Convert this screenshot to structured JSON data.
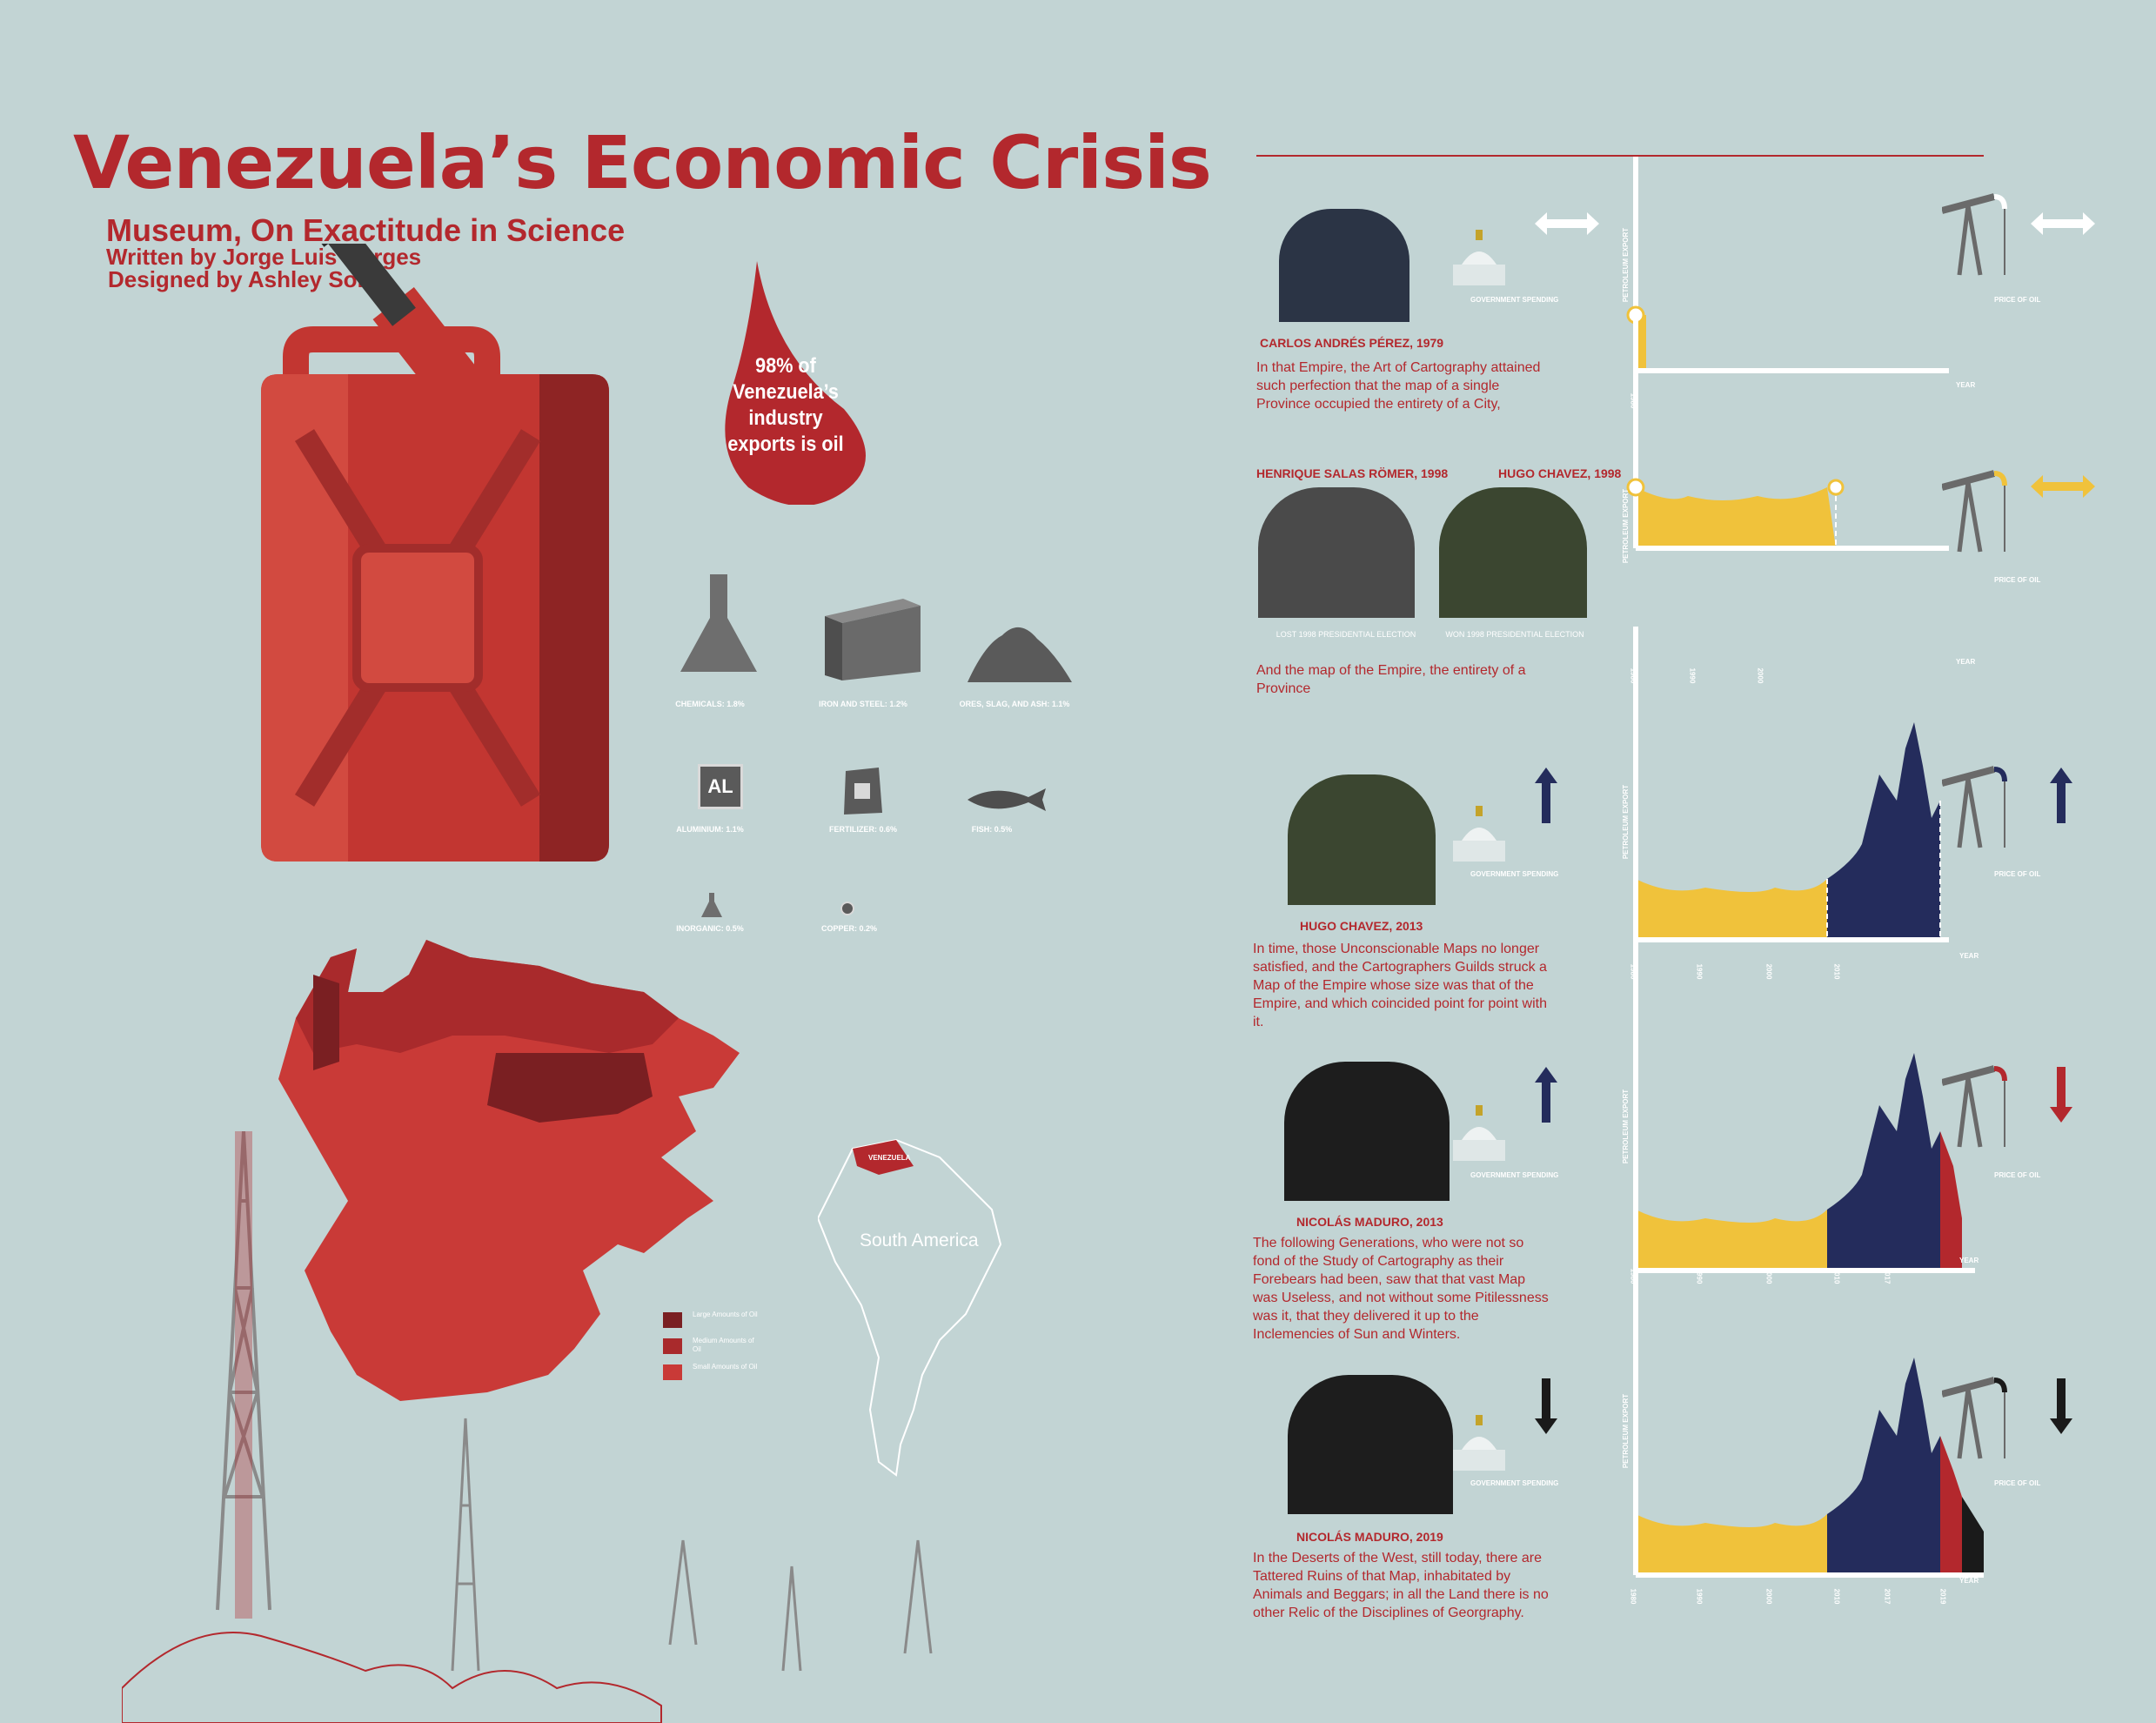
{
  "header": {
    "title": "Venezuela’s Economic Crisis",
    "subtitle": "Museum, On Exactitude in Science",
    "written_by": "Written by Jorge Luis Borges",
    "designed_by": "Designed by Ashley Sohn"
  },
  "drop": {
    "text": "98% of Venezuela’s industry exports is oil"
  },
  "products": [
    {
      "label": "CHEMICALS: 1.8%",
      "icon": "flask-icon"
    },
    {
      "label": "IRON AND STEEL: 1.2%",
      "icon": "steel-beam-icon"
    },
    {
      "label": "ORES, SLAG, AND ASH: 1.1%",
      "icon": "ore-pile-icon"
    },
    {
      "label": "ALUMINIUM: 1.1%",
      "icon": "aluminium-icon",
      "glyph": "AL"
    },
    {
      "label": "FERTILIZER: 0.6%",
      "icon": "fertilizer-bag-icon"
    },
    {
      "label": "FISH: 0.5%",
      "icon": "fish-icon"
    },
    {
      "label": "INORGANIC: 0.5%",
      "icon": "small-flask-icon"
    },
    {
      "label": "COPPER: 0.2%",
      "icon": "copper-icon"
    }
  ],
  "map": {
    "legend": [
      {
        "label": "Large Amounts of Oil",
        "color": "#7a1f22"
      },
      {
        "label": "Medium Amounts of Oil",
        "color": "#a92a2c"
      },
      {
        "label": "Small Amounts of Oil",
        "color": "#c93a37"
      }
    ],
    "south_america": "South America",
    "venezuela": "VENEZUELA"
  },
  "common": {
    "gov_spending": "GOVERNMENT SPENDING",
    "price_of_oil": "PRICE OF OIL",
    "petroleum_export": "PETROLEUM EXPORT",
    "year": "YEAR"
  },
  "colors": {
    "red": "#b3282d",
    "yellow": "#f0c23b",
    "navy": "#242c5c",
    "black": "#1a1a1a",
    "background": "#c2d4d4"
  },
  "panels": [
    {
      "leader": "CARLOS ANDRÉS PÉREZ, 1979",
      "quote": "In that Empire, the Art of Cartography attained such perfection that the map of a single Province occupied the entirety of a City,",
      "gov_trend": "stable",
      "price_trend": "stable",
      "ticks": [
        "1980"
      ]
    },
    {
      "leader_left": "HENRIQUE SALAS RÖMER, 1998",
      "leader_right": "HUGO CHAVEZ, 1998",
      "caption_left": "LOST 1998 PRESIDENTIAL ELECTION",
      "caption_right": "WON 1998 PRESIDENTIAL ELECTION",
      "quote": "And the map of the Empire, the entirety of a Province",
      "price_trend": "stable",
      "ticks": [
        "1980",
        "1990",
        "2000"
      ]
    },
    {
      "leader": "HUGO CHAVEZ, 2013",
      "quote": "In time, those Unconscionable Maps no longer satisfied, and the Cartographers Guilds struck a Map of the Empire whose size was that of the Empire, and which coincided point for point with it.",
      "gov_trend": "up",
      "price_trend": "up",
      "ticks": [
        "1980",
        "1990",
        "2000",
        "2010"
      ]
    },
    {
      "leader": "NICOLÁS MADURO, 2013",
      "quote": "The following Generations, who were not so fond of the Study of Cartography as their Forebears had been, saw that that vast Map was Useless, and not without some Pitilessness was it, that they delivered it up to the Inclemencies of Sun and Winters.",
      "gov_trend": "up",
      "price_trend": "down",
      "ticks": [
        "1980",
        "1990",
        "2000",
        "2010",
        "2017"
      ]
    },
    {
      "leader": "NICOLÁS MADURO, 2019",
      "quote": "In the Deserts of the West, still today, there are Tattered Ruins of that Map, inhabitated by Animals and Beggars; in all the Land there is no other Relic of the Disciplines of Georgraphy.",
      "gov_trend": "down",
      "price_trend": "down",
      "ticks": [
        "1980",
        "1990",
        "2000",
        "2010",
        "2017",
        "2019"
      ]
    }
  ]
}
